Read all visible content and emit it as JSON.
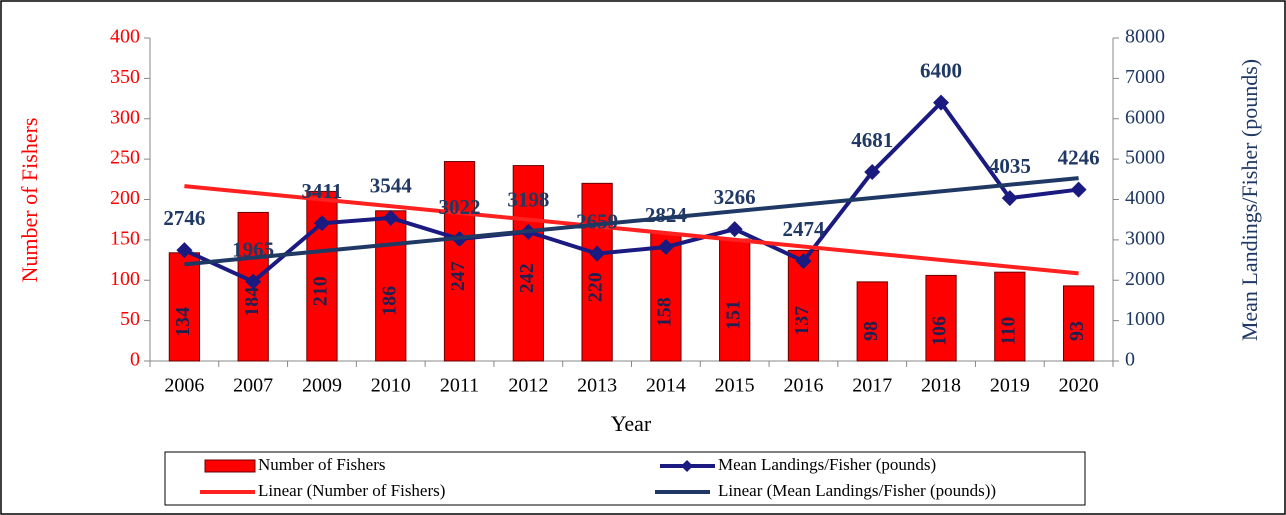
{
  "chart_data": {
    "type": "bar-line",
    "x_label": "Year",
    "y_label": "Number of Fishers",
    "y2_label": "Mean Landings/Fisher (pounds)",
    "categories": [
      "2006",
      "2007",
      "2009",
      "2010",
      "2011",
      "2012",
      "2013",
      "2014",
      "2015",
      "2016",
      "2017",
      "2018",
      "2019",
      "2020"
    ],
    "series": [
      {
        "name": "Number of Fishers",
        "type": "bar",
        "color": "#ff0000",
        "values": [
          134,
          184,
          210,
          186,
          247,
          242,
          220,
          158,
          151,
          137,
          98,
          106,
          110,
          93
        ],
        "trendline": {
          "name": "Linear (Number of Fishers)",
          "color": "#ff2020"
        }
      },
      {
        "name": "Mean Landings/Fisher (pounds)",
        "type": "line",
        "axis": "y2",
        "color": "#1a1a80",
        "values": [
          2746,
          1965,
          3411,
          3544,
          3022,
          3198,
          2659,
          2824,
          3266,
          2474,
          4681,
          6400,
          4035,
          4246
        ],
        "trendline": {
          "name": "Linear (Mean Landings/Fisher (pounds))",
          "color": "#1f3864"
        }
      }
    ],
    "ylim": [
      0,
      400
    ],
    "yticks": [
      0,
      50,
      100,
      150,
      200,
      250,
      300,
      350,
      400
    ],
    "y2lim": [
      0,
      8000
    ],
    "y2ticks": [
      0,
      1000,
      2000,
      3000,
      4000,
      5000,
      6000,
      7000,
      8000
    ],
    "grid": false
  }
}
